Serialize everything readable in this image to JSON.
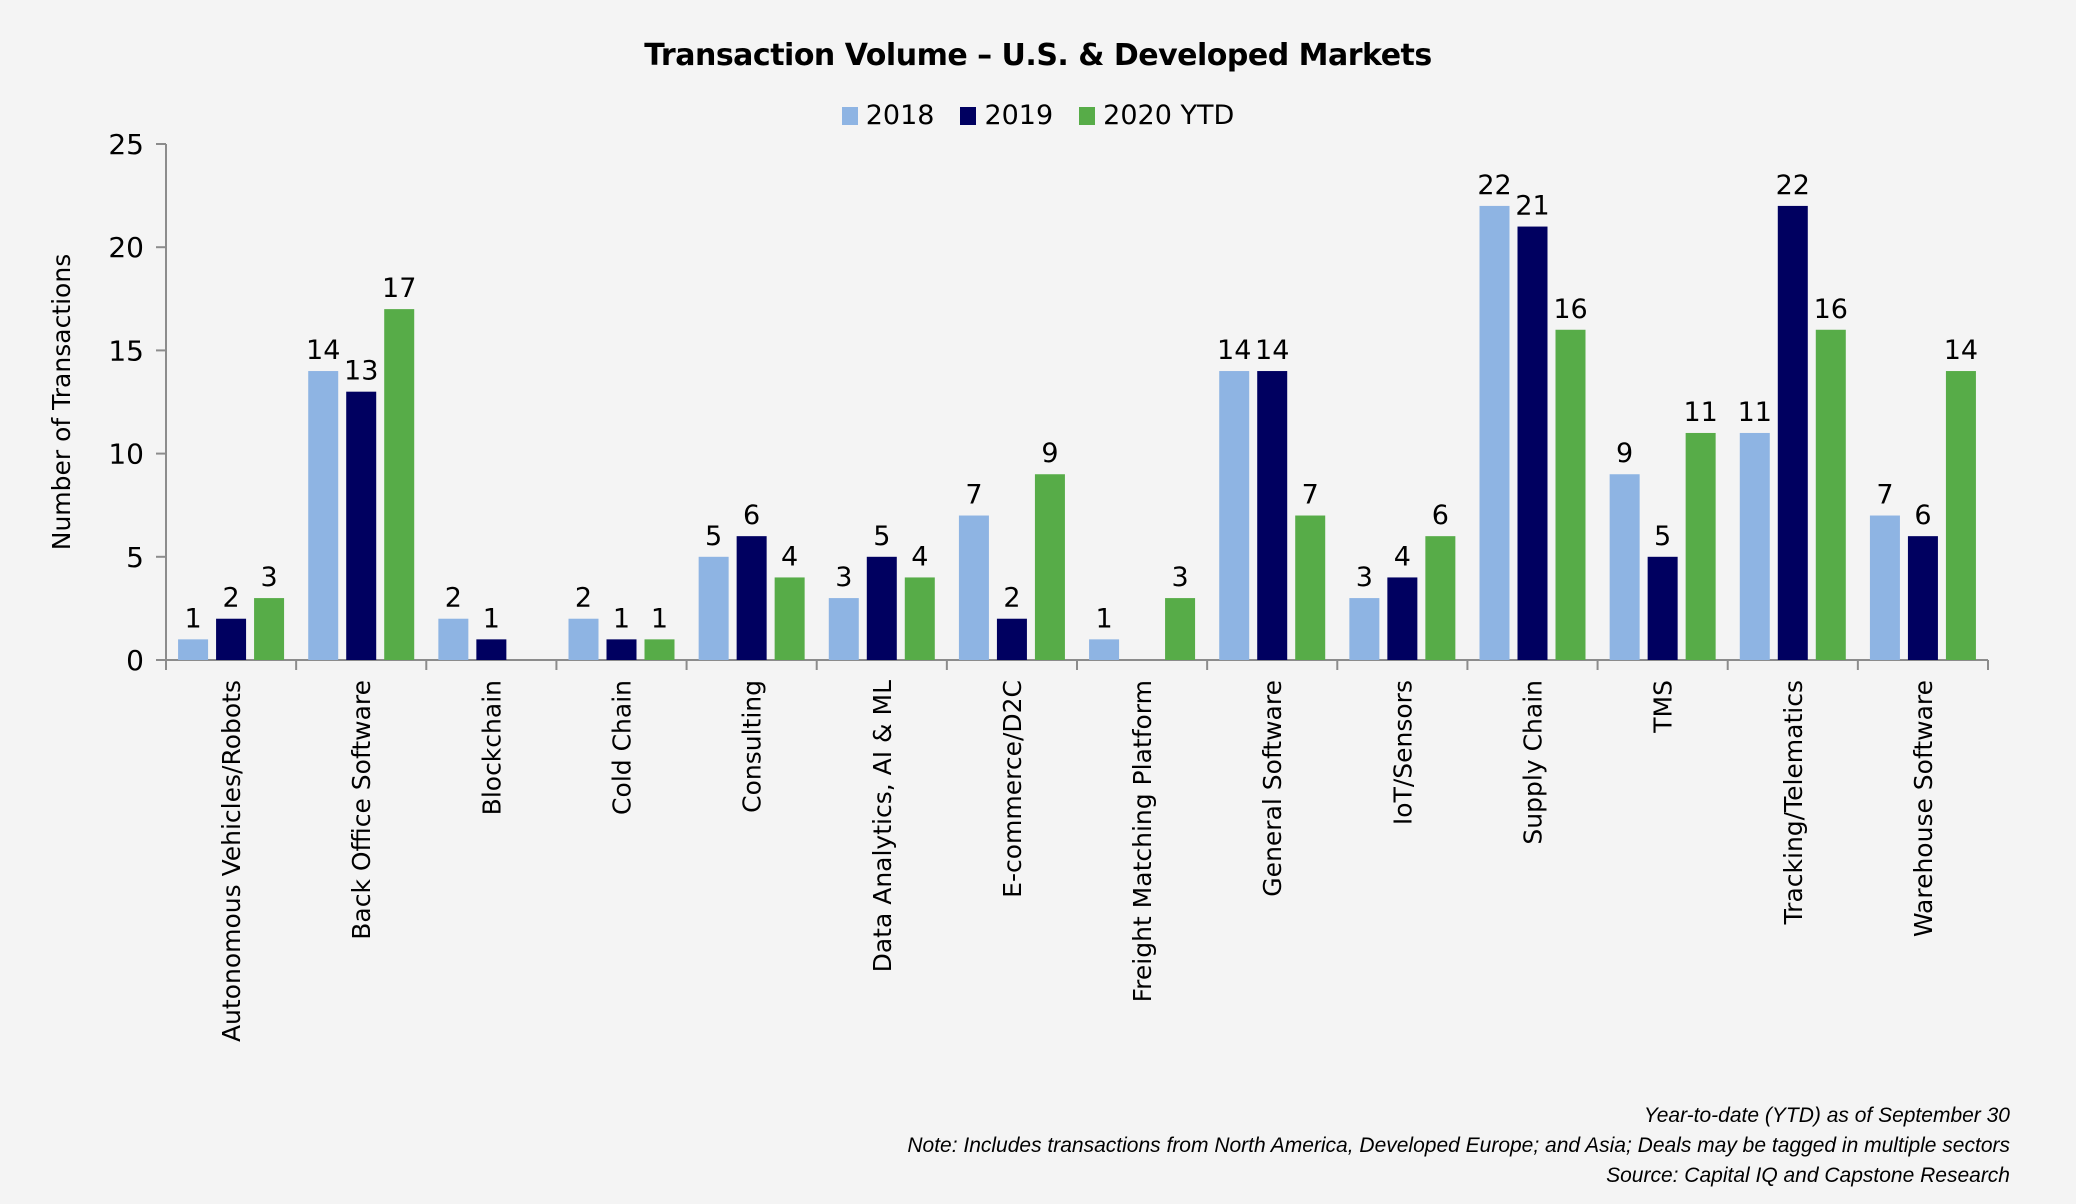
{
  "chart_data": {
    "type": "bar",
    "title": "Transaction Volume – U.S. & Developed Markets",
    "xlabel": "",
    "ylabel": "Number of Transactions",
    "ylim": [
      0,
      25
    ],
    "yticks": [
      0,
      5,
      10,
      15,
      20,
      25
    ],
    "grid": false,
    "legend_position": "top-center",
    "categories": [
      "Autonomous Vehicles/Robots",
      "Back Office Software",
      "Blockchain",
      "Cold Chain",
      "Consulting",
      "Data Analytics, AI & ML",
      "E-commerce/D2C",
      "Freight Matching Platform",
      "General Software",
      "IoT/Sensors",
      "Supply Chain",
      "TMS",
      "Tracking/Telematics",
      "Warehouse Software"
    ],
    "series": [
      {
        "name": "2018",
        "color": "#8eb4e3",
        "values": [
          1,
          14,
          2,
          2,
          5,
          3,
          7,
          1,
          14,
          3,
          22,
          9,
          11,
          7
        ]
      },
      {
        "name": "2019",
        "color": "#000060",
        "values": [
          2,
          13,
          1,
          1,
          6,
          5,
          2,
          0,
          14,
          4,
          21,
          5,
          22,
          6
        ]
      },
      {
        "name": "2020 YTD",
        "color": "#57ac48",
        "values": [
          3,
          17,
          0,
          1,
          4,
          4,
          9,
          3,
          7,
          6,
          16,
          11,
          16,
          14
        ]
      }
    ],
    "footnotes": [
      "Year-to-date (YTD) as of September 30",
      "Note: Includes transactions from North America, Developed Europe; and Asia; Deals may be tagged in multiple sectors",
      "Source: Capital IQ and Capstone Research"
    ]
  }
}
